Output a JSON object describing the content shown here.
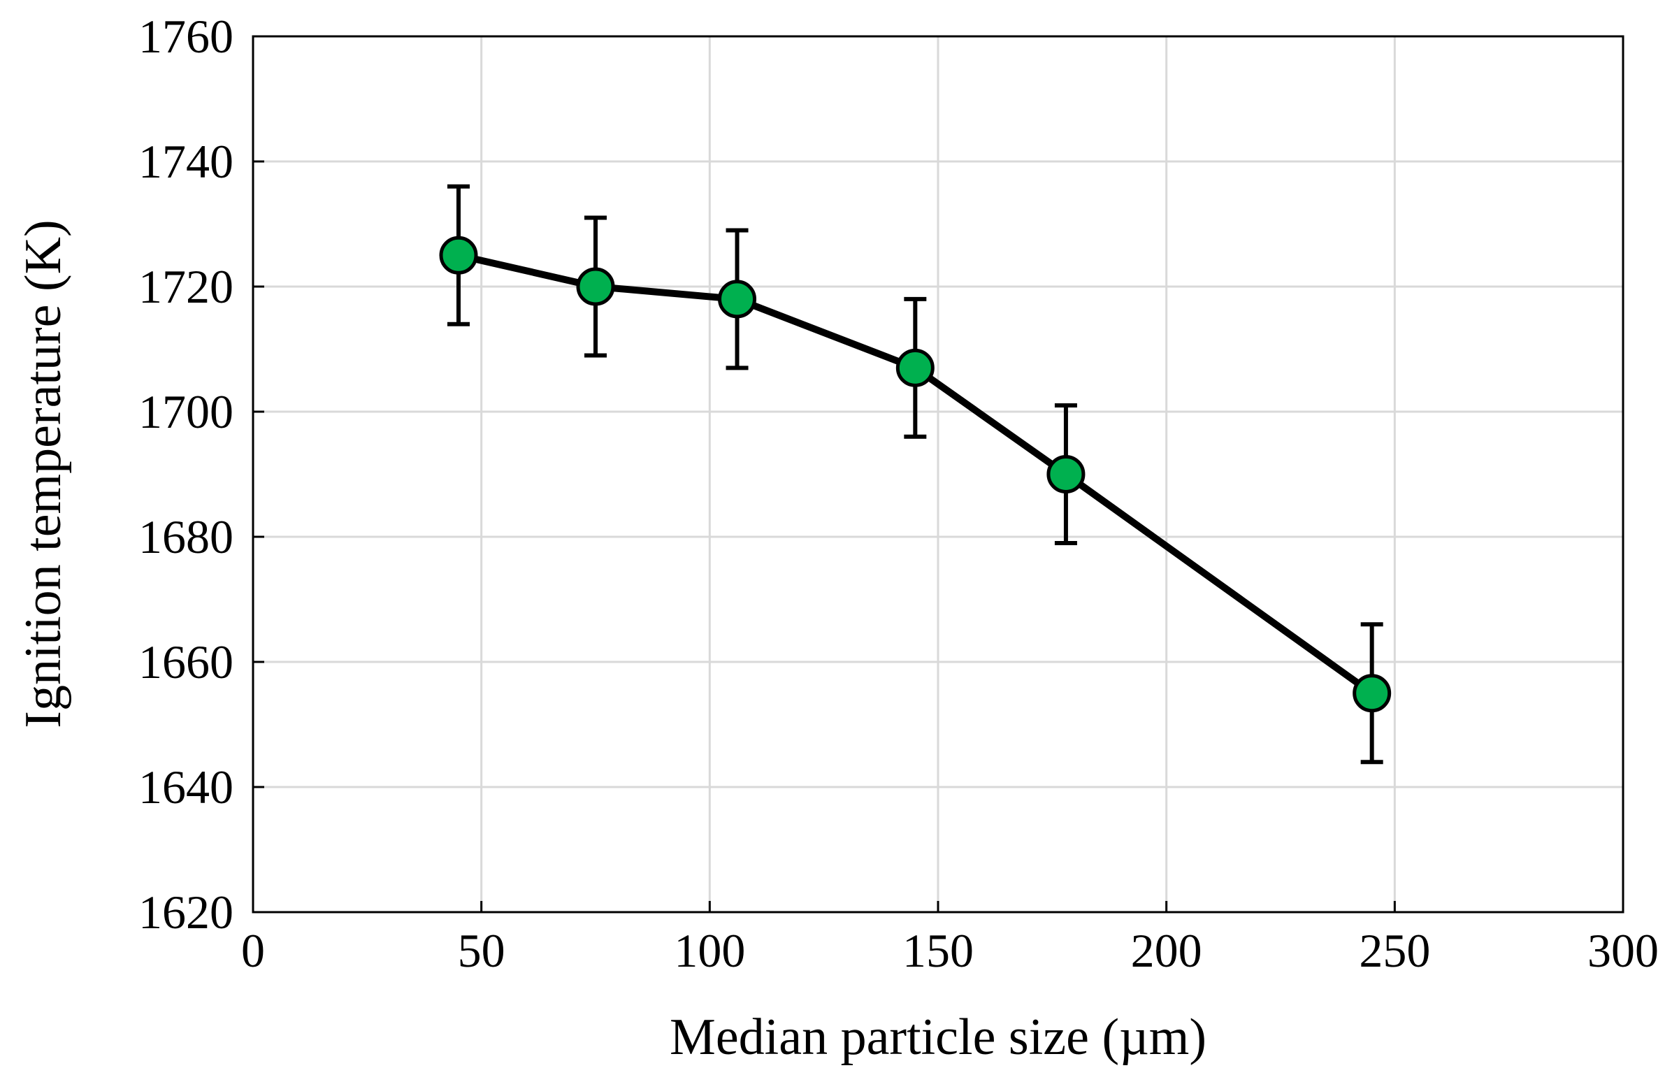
{
  "chart_data": {
    "type": "scatter",
    "title": "",
    "xlabel": "Median particle size (µm)",
    "ylabel": "Ignition temperature (K)",
    "xlim": [
      0,
      300
    ],
    "ylim": [
      1620,
      1760
    ],
    "xticks": [
      0,
      50,
      100,
      150,
      200,
      250,
      300
    ],
    "yticks": [
      1620,
      1640,
      1660,
      1680,
      1700,
      1720,
      1740,
      1760
    ],
    "xtick_labels": [
      "0",
      "50",
      "100",
      "150",
      "200",
      "250",
      "300"
    ],
    "ytick_labels": [
      "1620",
      "1640",
      "1660",
      "1680",
      "1700",
      "1720",
      "1740",
      "1760"
    ],
    "grid": true,
    "legend": "none",
    "series": [
      {
        "name": "Ignition temperature",
        "x": [
          45,
          75,
          106,
          145,
          178,
          245
        ],
        "y": [
          1725,
          1720,
          1718,
          1707,
          1690,
          1655
        ],
        "error": [
          11,
          11,
          11,
          11,
          11,
          11
        ],
        "marker_color": "#00b04f",
        "line_color": "#000000"
      }
    ]
  }
}
